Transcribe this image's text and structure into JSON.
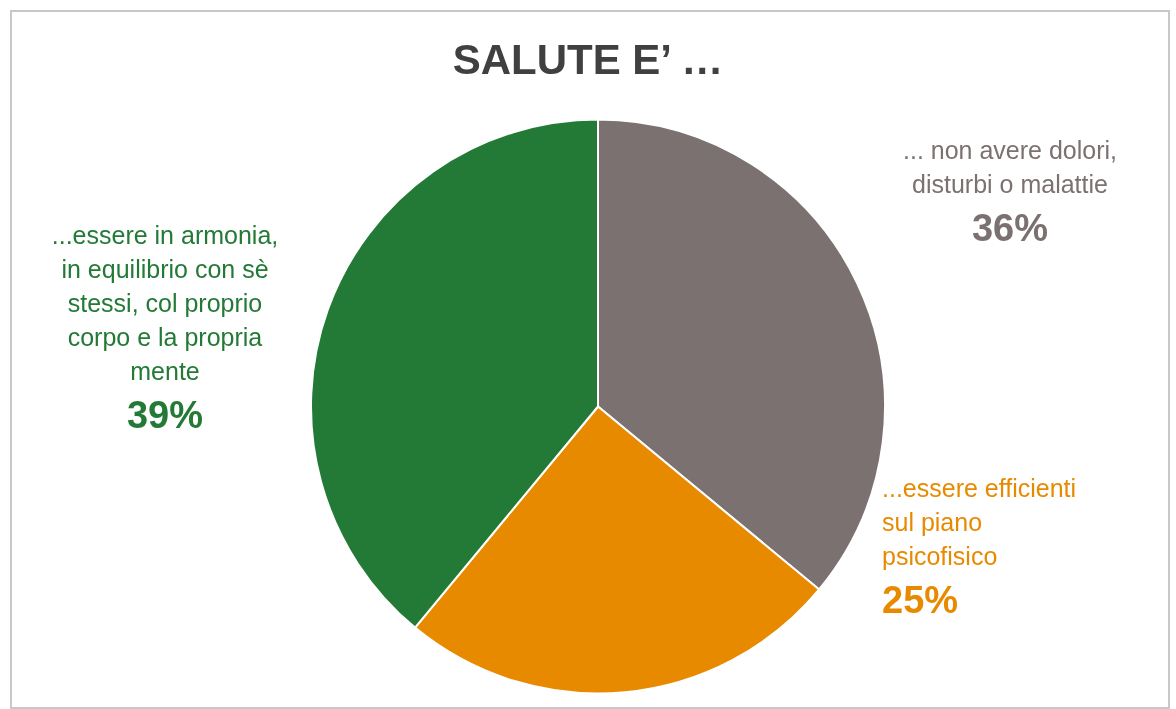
{
  "chart_data": {
    "type": "pie",
    "title": "SALUTE E’ …",
    "categories": [
      "... non avere dolori, disturbi o malattie",
      "...essere efficienti sul piano psicofisico",
      "...essere in armonia, in equilibrio con sè stessi, col proprio corpo e la propria mente"
    ],
    "values": [
      36,
      25,
      39
    ],
    "colors": [
      "#7b7170",
      "#e88a00",
      "#237a36"
    ],
    "value_labels": [
      "36%",
      "25%",
      "39%"
    ]
  }
}
